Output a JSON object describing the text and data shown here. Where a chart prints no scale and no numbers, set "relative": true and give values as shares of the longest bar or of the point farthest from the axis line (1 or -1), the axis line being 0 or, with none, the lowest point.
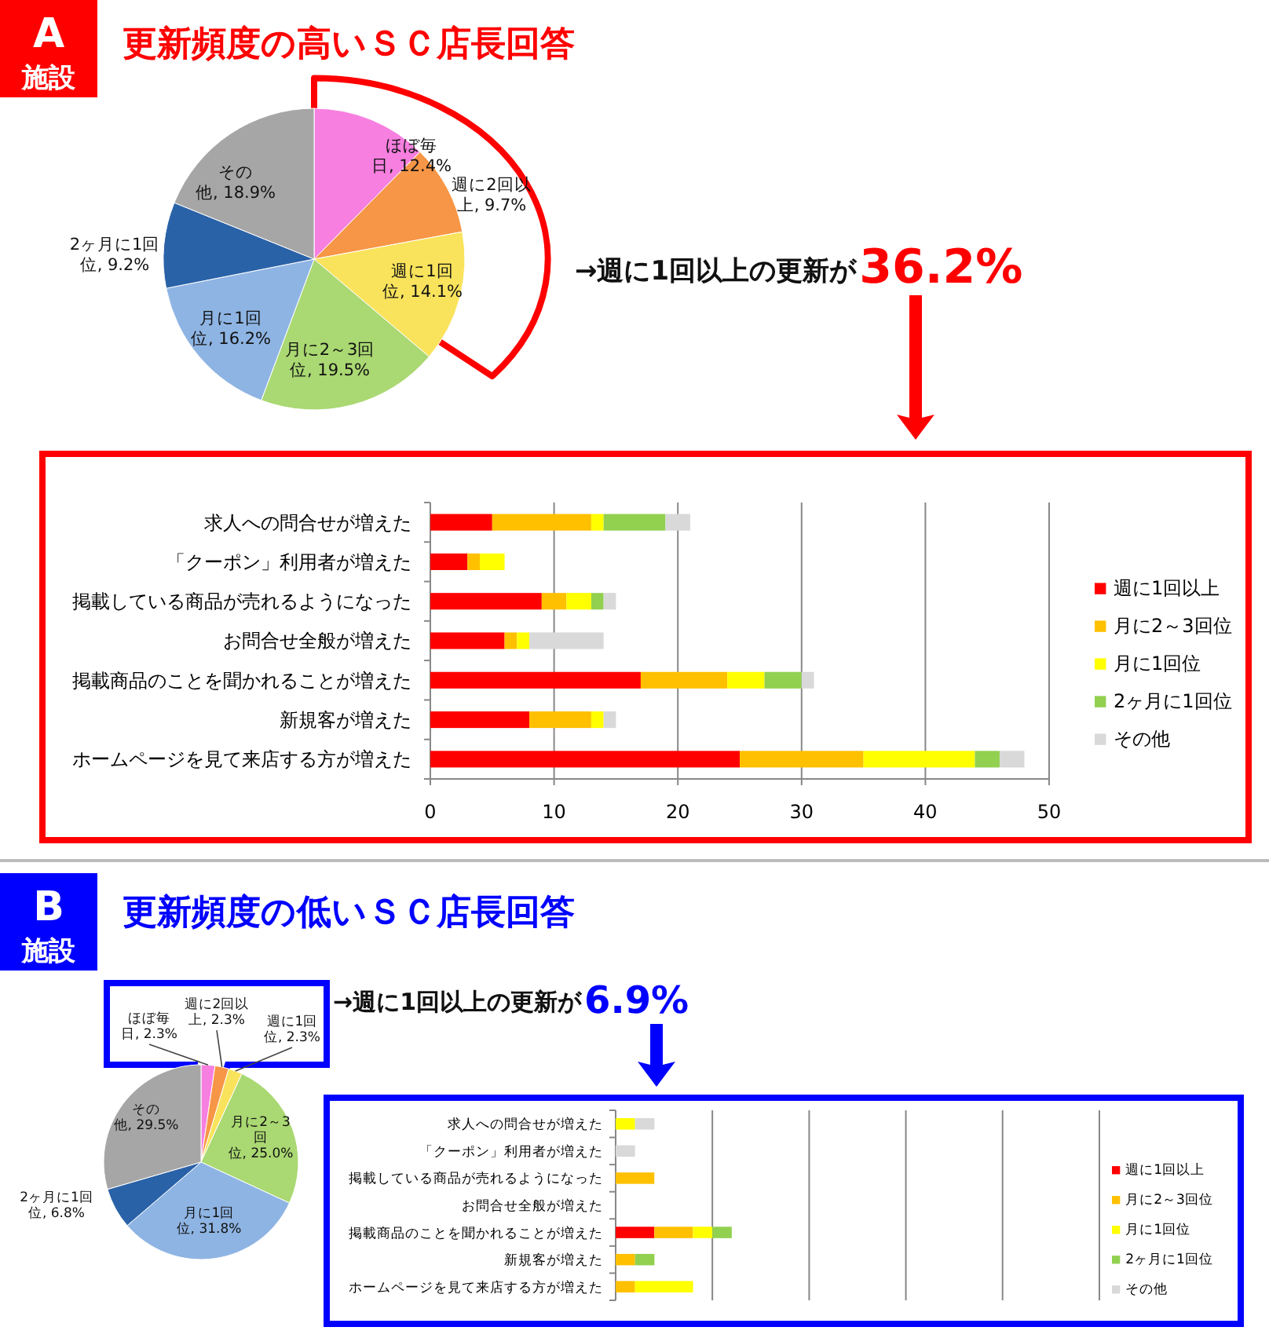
{
  "chart_data": [
    {
      "type": "pie",
      "title": "更新頻度の高いＳＣ店長回答",
      "categories": [
        "ほぼ毎日",
        "週に2回以上",
        "週に1回位",
        "月に2～3回位",
        "月に1回位",
        "2ヶ月に1回位",
        "その他"
      ],
      "values": [
        12.4,
        9.7,
        14.1,
        19.5,
        16.2,
        9.2,
        18.9
      ],
      "value_labels": [
        "12.4%",
        "9.7%",
        "14.1%",
        "19.5%",
        "16.2%",
        "9.2%",
        "18.9%"
      ],
      "colors": [
        "#f77fe0",
        "#f79646",
        "#f9e35c",
        "#aad872",
        "#8eb4e3",
        "#2a62a8",
        "#a6a6a6"
      ],
      "annotations": [
        "A",
        "施設",
        "→週に1回以上の更新が",
        "36.2%"
      ]
    },
    {
      "type": "bar",
      "orientation": "horizontal",
      "stacked": true,
      "categories": [
        "求人への問合せが増えた",
        "「クーポン」利用者が増えた",
        "掲載している商品が売れるようになった",
        "お問合せ全般が増えた",
        "掲載商品のことを聞かれることが増えた",
        "新規客が増えた",
        "ホームページを見て来店する方が増えた"
      ],
      "series": [
        {
          "name": "週に1回以上",
          "color": "#ff0000",
          "values": [
            5,
            3,
            9,
            6,
            17,
            8,
            25
          ]
        },
        {
          "name": "月に2～3回位",
          "color": "#ffc000",
          "values": [
            8,
            1,
            2,
            1,
            7,
            5,
            10
          ]
        },
        {
          "name": "月に1回位",
          "color": "#ffff00",
          "values": [
            1,
            2,
            2,
            1,
            3,
            1,
            9
          ]
        },
        {
          "name": "2ヶ月に1回位",
          "color": "#92d050",
          "values": [
            5,
            0,
            1,
            0,
            3,
            0,
            2
          ]
        },
        {
          "name": "その他",
          "color": "#d9d9d9",
          "values": [
            2,
            0,
            1,
            6,
            1,
            1,
            2
          ]
        }
      ],
      "xlim": [
        0,
        50
      ],
      "xticks": [
        0,
        10,
        20,
        30,
        40,
        50
      ],
      "grid": "x",
      "legend": "right"
    },
    {
      "type": "pie",
      "title": "更新頻度の低いＳＣ店長回答",
      "categories": [
        "ほぼ毎日",
        "週に2回以上",
        "週に1回位",
        "月に2～3回位",
        "月に1回位",
        "2ヶ月に1回位",
        "その他"
      ],
      "values": [
        2.3,
        2.3,
        2.3,
        25.0,
        31.8,
        6.8,
        29.5
      ],
      "value_labels": [
        "2.3%",
        "2.3%",
        "2.3%",
        "25.0%",
        "31.8%",
        "6.8%",
        "29.5%"
      ],
      "colors": [
        "#f77fe0",
        "#f79646",
        "#f9e35c",
        "#aad872",
        "#8eb4e3",
        "#2a62a8",
        "#a6a6a6"
      ],
      "annotations": [
        "B",
        "施設",
        "→週に1回以上の更新が",
        "6.9%"
      ]
    },
    {
      "type": "bar",
      "orientation": "horizontal",
      "stacked": true,
      "relative": true,
      "categories": [
        "求人への問合せが増えた",
        "「クーポン」利用者が増えた",
        "掲載している商品が売れるようになった",
        "お問合せ全般が増えた",
        "掲載商品のことを聞かれることが増えた",
        "新規客が増えた",
        "ホームページを見て来店する方が増えた"
      ],
      "series": [
        {
          "name": "週に1回以上",
          "color": "#ff0000",
          "values": [
            0,
            0,
            0,
            0,
            0.333,
            0,
            0
          ]
        },
        {
          "name": "月に2～3回位",
          "color": "#ffc000",
          "values": [
            0,
            0,
            0.333,
            0,
            0.333,
            0.167,
            0.167
          ]
        },
        {
          "name": "月に1回位",
          "color": "#ffff00",
          "values": [
            0.167,
            0,
            0,
            0,
            0.167,
            0,
            0.5
          ]
        },
        {
          "name": "2ヶ月に1回位",
          "color": "#92d050",
          "values": [
            0,
            0,
            0,
            0,
            0.167,
            0.167,
            0
          ]
        },
        {
          "name": "その他",
          "color": "#d9d9d9",
          "values": [
            0.167,
            0.167,
            0,
            0,
            0,
            0,
            0
          ]
        }
      ],
      "ref_lines": [
        {
          "axis": "x",
          "value": 0.833
        },
        {
          "axis": "x",
          "value": 1.667
        },
        {
          "axis": "x",
          "value": 2.5
        },
        {
          "axis": "x",
          "value": 3.333
        },
        {
          "axis": "x",
          "value": 4.167
        }
      ],
      "legend": "right"
    }
  ]
}
